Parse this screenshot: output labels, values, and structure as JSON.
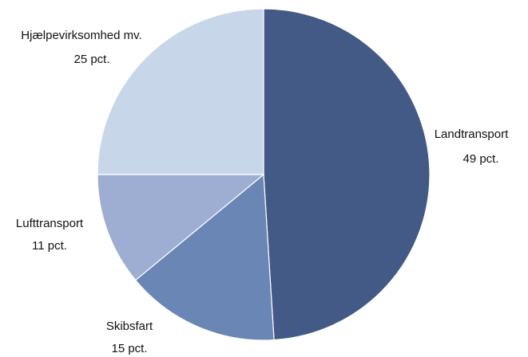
{
  "chart_data": {
    "type": "pie",
    "categories": [
      "Landtransport",
      "Skibsfart",
      "Lufttransport",
      "Hjælpevirksomhed mv."
    ],
    "values": [
      49,
      15,
      11,
      25
    ],
    "value_labels": [
      "49 pct.",
      "15 pct.",
      "11 pct.",
      "25 pct."
    ],
    "colors": [
      "#435a87",
      "#6a86b5",
      "#9daed2",
      "#c8d6ea"
    ]
  }
}
